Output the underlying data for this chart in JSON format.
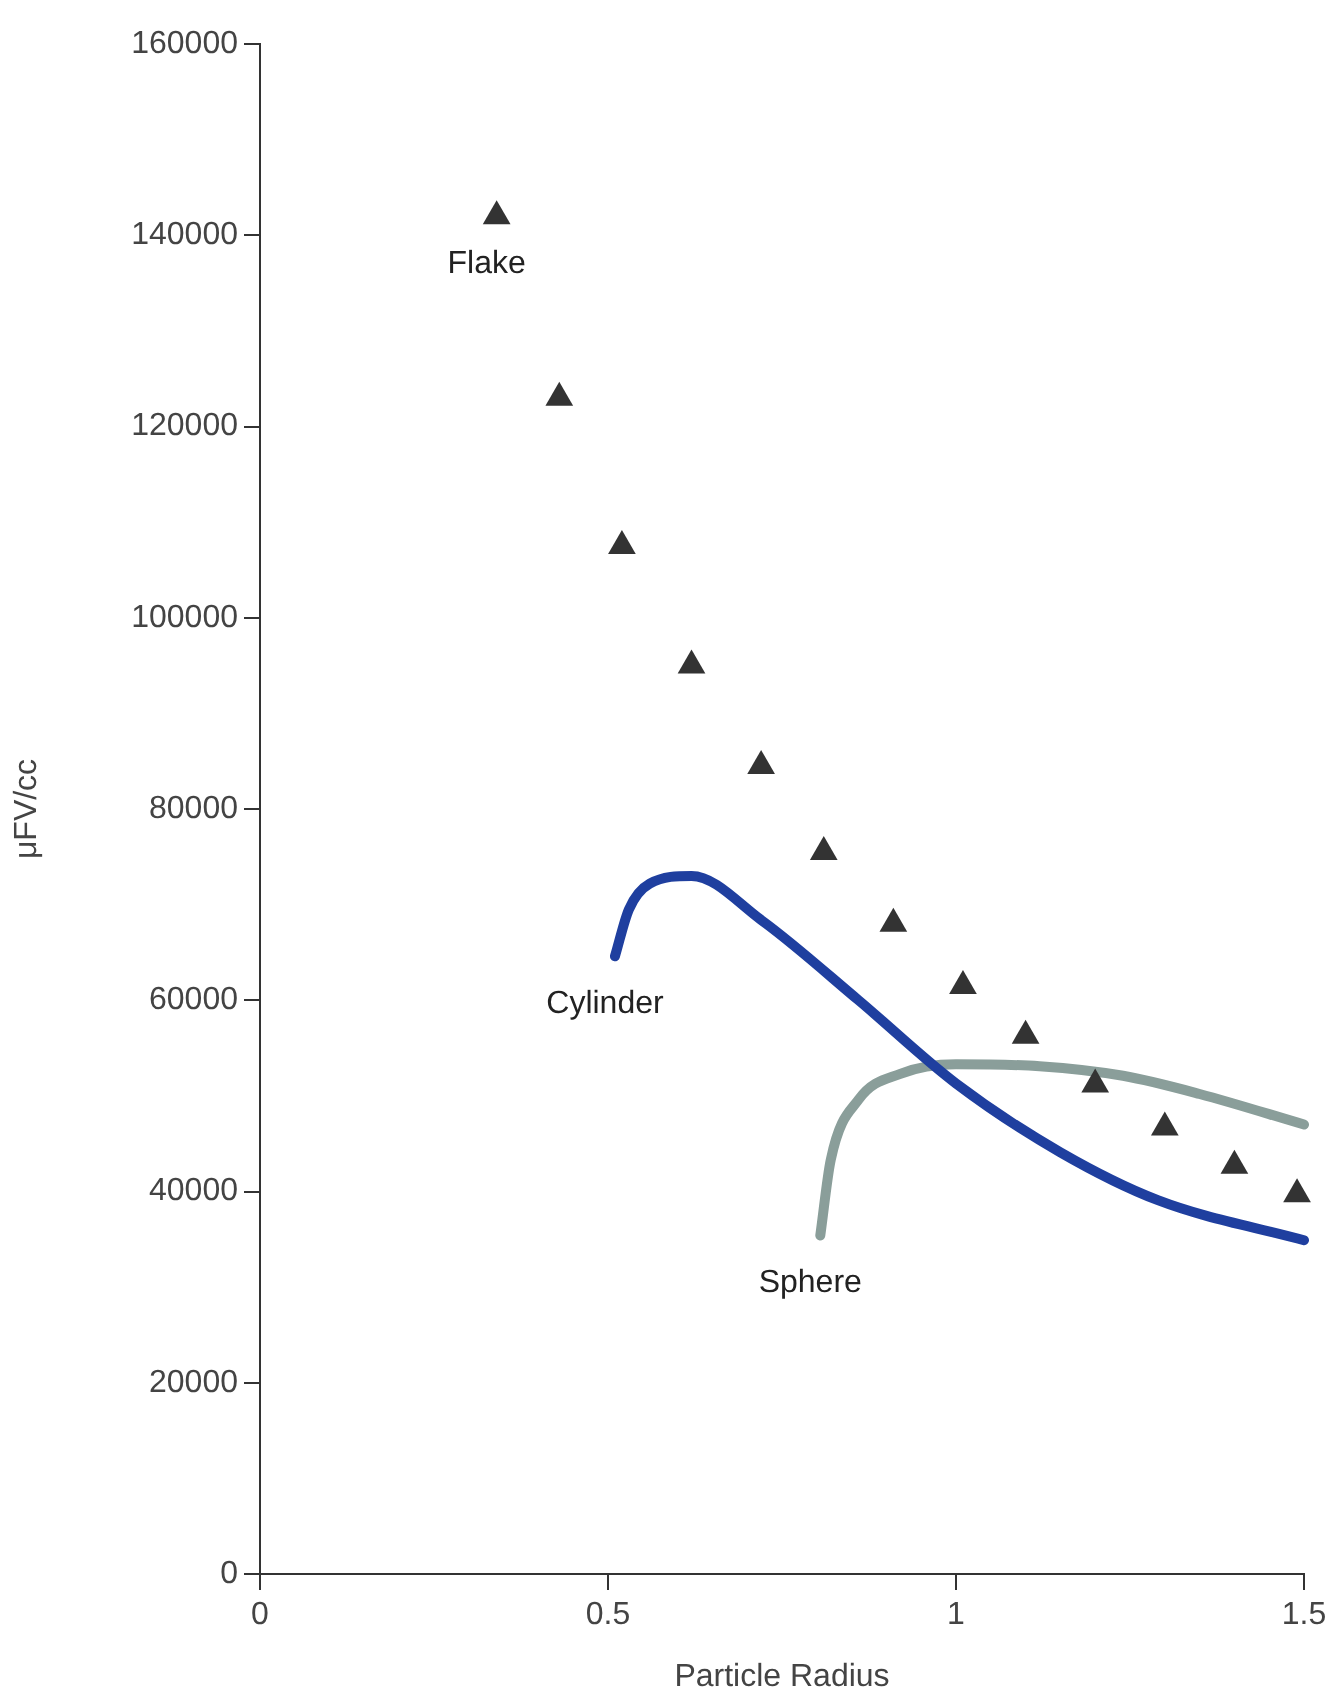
{
  "chart_data": {
    "type": "line",
    "xlabel": "Particle Radius",
    "ylabel": "μFV/cc",
    "xlim": [
      0,
      1.5
    ],
    "xticks": [
      0,
      0.5,
      1,
      1.5
    ],
    "ylim": [
      0,
      160000
    ],
    "yticks": [
      0,
      20000,
      40000,
      60000,
      80000,
      100000,
      120000,
      140000,
      160000
    ],
    "grid": false,
    "legend": false,
    "series": [
      {
        "name": "Flake",
        "type": "scatter",
        "marker": "triangle",
        "color": "#333333",
        "x": [
          0.34,
          0.43,
          0.52,
          0.62,
          0.72,
          0.81,
          0.91,
          1.01,
          1.1,
          1.2,
          1.3,
          1.4,
          1.49
        ],
        "values": [
          142000,
          123000,
          107500,
          95000,
          84500,
          75500,
          68000,
          61500,
          56300,
          51200,
          46700,
          42700,
          39700
        ]
      },
      {
        "name": "Cylinder",
        "marker": "none",
        "color": "#1f3f9f",
        "x": [
          0.51,
          0.53,
          0.56,
          0.62,
          0.72,
          0.86,
          1.0,
          1.15,
          1.29,
          1.5
        ],
        "values": [
          64600,
          69500,
          72200,
          73000,
          68400,
          60000,
          51300,
          44100,
          39100,
          34900
        ]
      },
      {
        "name": "Sphere",
        "marker": "none",
        "color": "#8a9e9a",
        "x": [
          0.805,
          0.82,
          0.86,
          0.92,
          1.0,
          1.12,
          1.24,
          1.35,
          1.5
        ],
        "values": [
          35400,
          43300,
          49600,
          52300,
          53300,
          53100,
          52100,
          50200,
          47000
        ]
      }
    ]
  }
}
